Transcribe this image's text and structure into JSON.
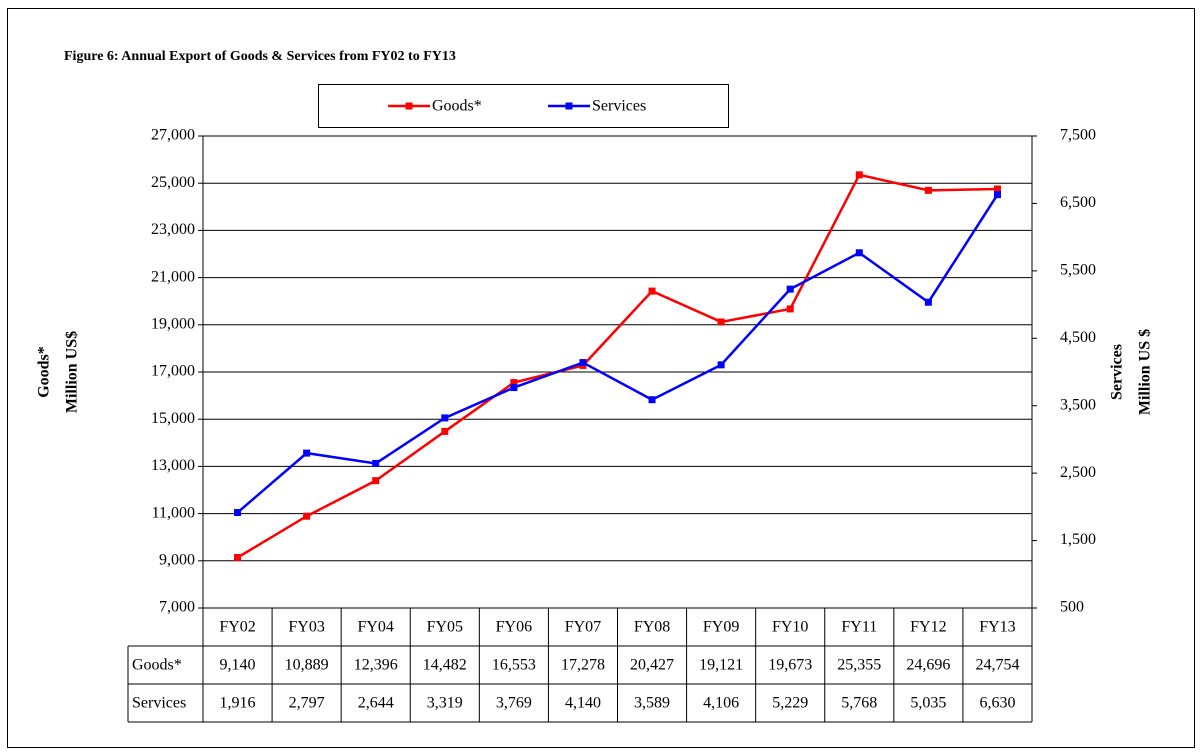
{
  "chart_data": {
    "type": "line",
    "title": "Figure 6: Annual Export of Goods & Services from FY02 to FY13",
    "categories": [
      "FY02",
      "FY03",
      "FY04",
      "FY05",
      "FY06",
      "FY07",
      "FY08",
      "FY09",
      "FY10",
      "FY11",
      "FY12",
      "FY13"
    ],
    "series": [
      {
        "name": "Goods*",
        "color": "#ff0000",
        "values": [
          9140,
          10889,
          12396,
          14482,
          16553,
          17278,
          20427,
          19121,
          19673,
          25355,
          24696,
          24754
        ],
        "value_labels": [
          "9,140",
          "10,889",
          "12,396",
          "14,482",
          "16,553",
          "17,278",
          "20,427",
          "19,121",
          "19,673",
          "25,355",
          "24,696",
          "24,754"
        ]
      },
      {
        "name": "Services",
        "color": "#0000ff",
        "axis": "y2",
        "values": [
          1916,
          2797,
          2644,
          3319,
          3769,
          4140,
          3589,
          4106,
          5229,
          5768,
          5035,
          6630
        ],
        "value_labels": [
          "1,916",
          "2,797",
          "2,644",
          "3,319",
          "3,769",
          "4,140",
          "3,589",
          "4,106",
          "5,229",
          "5,768",
          "5,035",
          "6,630"
        ]
      }
    ],
    "ylabel": [
      "Goods*",
      "Million US$"
    ],
    "y2label": [
      "Services",
      "Million US $"
    ],
    "ylim": [
      7000,
      27000
    ],
    "yticks": [
      {
        "value": 7000,
        "label": "7,000"
      },
      {
        "value": 9000,
        "label": "9,000"
      },
      {
        "value": 11000,
        "label": "11,000"
      },
      {
        "value": 13000,
        "label": "13,000"
      },
      {
        "value": 15000,
        "label": "15,000"
      },
      {
        "value": 17000,
        "label": "17,000"
      },
      {
        "value": 19000,
        "label": "19,000"
      },
      {
        "value": 21000,
        "label": "21,000"
      },
      {
        "value": 23000,
        "label": "23,000"
      },
      {
        "value": 25000,
        "label": "25,000"
      },
      {
        "value": 27000,
        "label": "27,000"
      }
    ],
    "y2lim": [
      500,
      7500
    ],
    "y2ticks": [
      500,
      {
        "value": 1500,
        "label": "1,500"
      },
      {
        "value": 2500,
        "label": "2,500"
      },
      {
        "value": 3500,
        "label": "3,500"
      },
      {
        "value": 4500,
        "label": "4,500"
      },
      {
        "value": 5500,
        "label": "5,500"
      },
      {
        "value": 6500,
        "label": "6,500"
      },
      {
        "value": 7500,
        "label": "7,500"
      }
    ],
    "grid": true,
    "legend": "top"
  }
}
